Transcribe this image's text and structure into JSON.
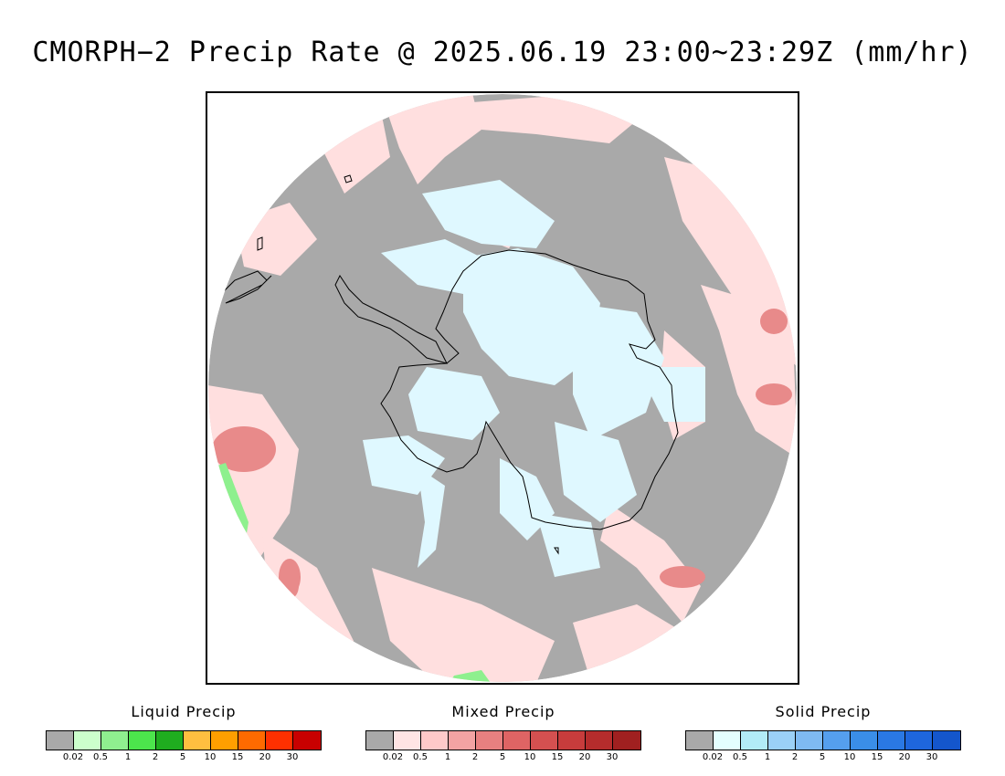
{
  "title": "CMORPH−2 Precip Rate @ 2025.06.19 23:00~23:29Z (mm/hr)",
  "map": {
    "projection": "south-polar-stereographic",
    "colors": {
      "no_precip": "#a9a9a9",
      "mixed_light": "#ffdfdf",
      "mixed_medium": "#f2a6a6",
      "mixed_heavy": "#e07a7a",
      "solid_light": "#dff8ff",
      "liquid_light": "#8ef08e",
      "coastline": "#000000",
      "frame": "#000000"
    }
  },
  "legends": [
    {
      "id": "liquid",
      "title": "Liquid Precip",
      "colors": [
        "#a9a9a9",
        "#ccffcc",
        "#8fef8f",
        "#4ce54c",
        "#1fad1f",
        "#ffbf40",
        "#ff9f00",
        "#ff6a00",
        "#ff3000",
        "#c80000"
      ],
      "ticks": [
        "0.02",
        "0.5",
        "1",
        "2",
        "5",
        "10",
        "15",
        "20",
        "30"
      ]
    },
    {
      "id": "mixed",
      "title": "Mixed Precip",
      "colors": [
        "#a9a9a9",
        "#ffe4e4",
        "#ffc9c9",
        "#f3a3a3",
        "#e88080",
        "#df6464",
        "#d45050",
        "#c73c3c",
        "#b52c2c",
        "#a02020"
      ],
      "ticks": [
        "0.02",
        "0.5",
        "1",
        "2",
        "5",
        "10",
        "15",
        "20",
        "30"
      ]
    },
    {
      "id": "solid",
      "title": "Solid Precip",
      "colors": [
        "#a9a9a9",
        "#e4ffff",
        "#b2ecf7",
        "#9bd0f7",
        "#7fbaf2",
        "#559fee",
        "#3a8ee8",
        "#2a78e4",
        "#1e66dd",
        "#1456cc"
      ],
      "ticks": [
        "0.02",
        "0.5",
        "1",
        "2",
        "5",
        "10",
        "15",
        "20",
        "30"
      ]
    }
  ]
}
